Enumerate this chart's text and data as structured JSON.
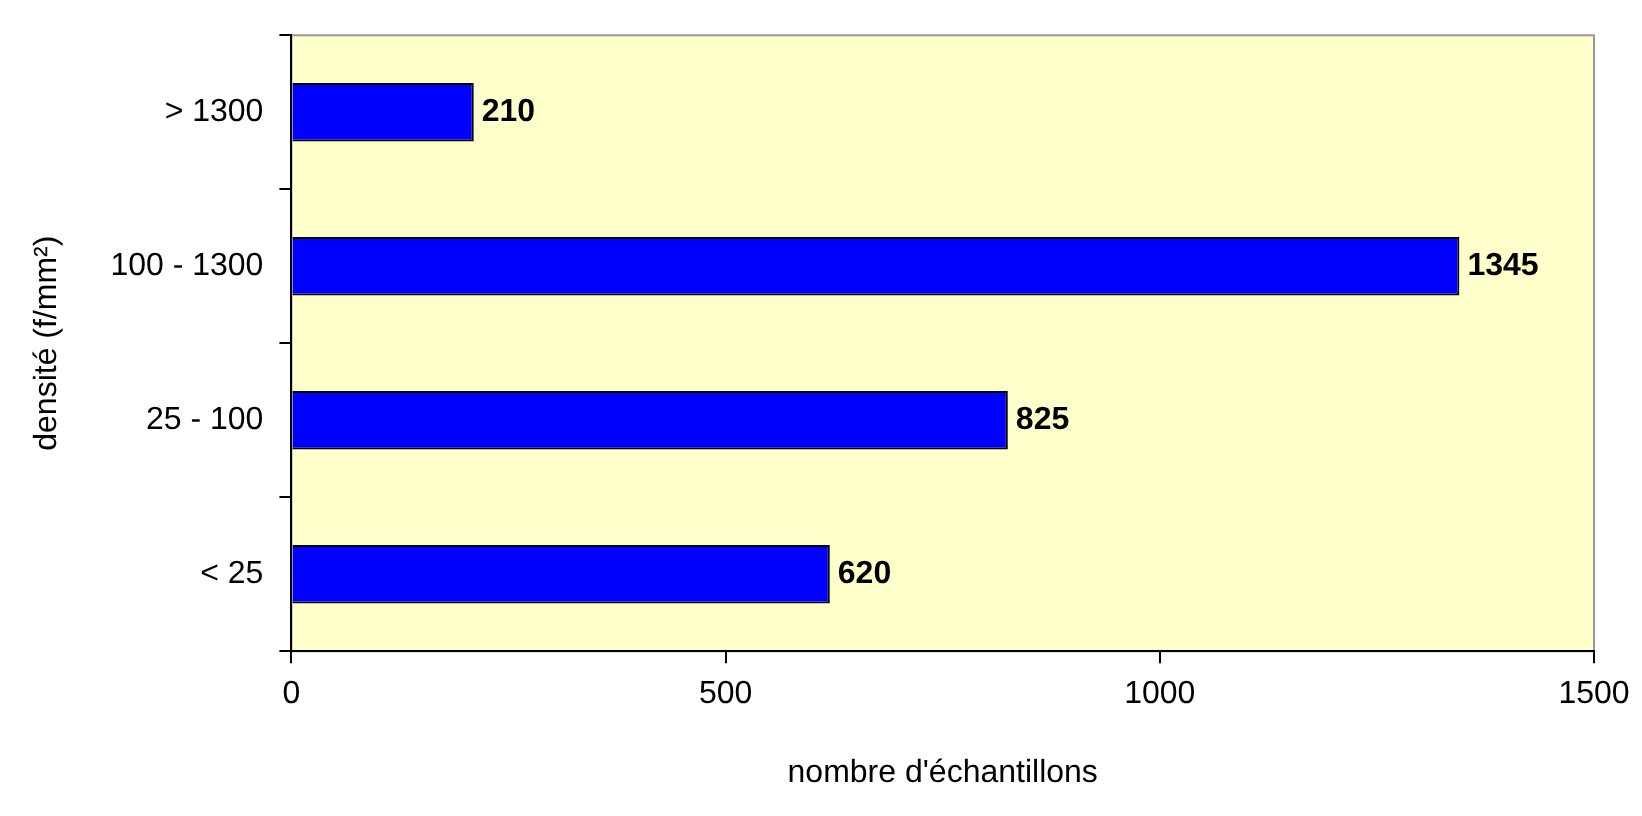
{
  "chart_data": {
    "type": "bar",
    "orientation": "horizontal",
    "xlabel": "nombre d'échantillons",
    "ylabel": "densité (f/mm²)",
    "categories": [
      "> 1300",
      "100 - 1300",
      "25 - 100",
      "< 25"
    ],
    "values": [
      210,
      1345,
      825,
      620
    ],
    "color": "#0000ff",
    "xlim": [
      0,
      1500
    ],
    "xticks": [
      0,
      500,
      1000,
      1500
    ],
    "grid": false,
    "legend": false,
    "data_labels": true
  }
}
